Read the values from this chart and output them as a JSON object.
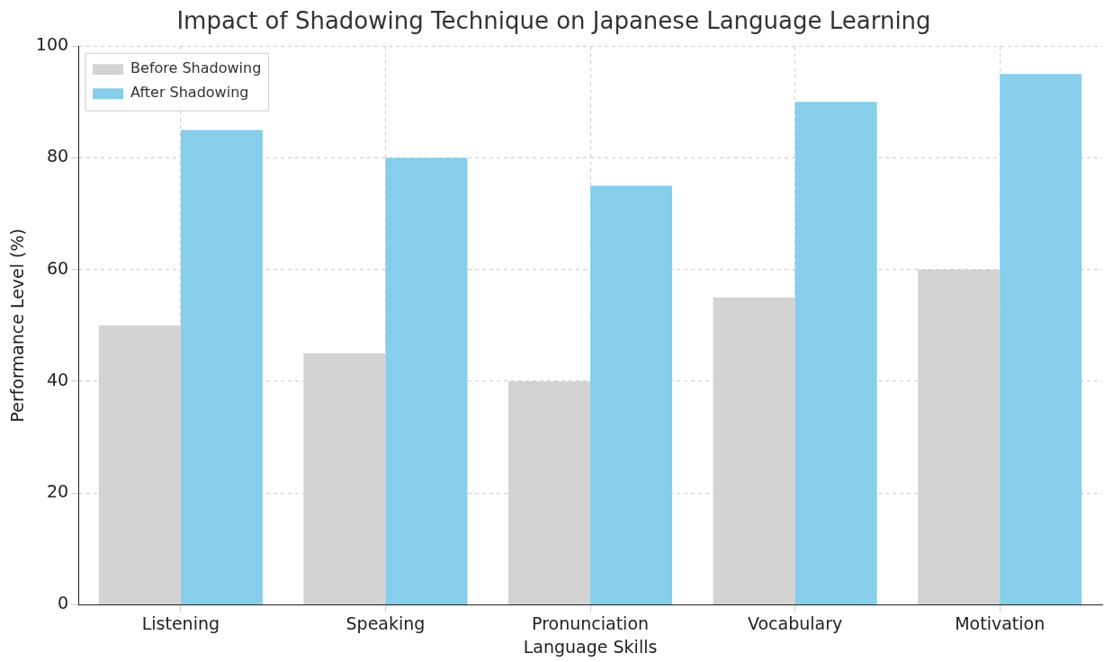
{
  "chart_data": {
    "type": "bar",
    "title": "Impact of Shadowing Technique on Japanese Language Learning",
    "xlabel": "Language Skills",
    "ylabel": "Performance Level (%)",
    "categories": [
      "Listening",
      "Speaking",
      "Pronunciation",
      "Vocabulary",
      "Motivation"
    ],
    "series": [
      {
        "name": "Before Shadowing",
        "color": "#d3d3d3",
        "values": [
          50,
          45,
          40,
          55,
          60
        ]
      },
      {
        "name": "After Shadowing",
        "color": "#87ceeb",
        "values": [
          85,
          80,
          75,
          90,
          95
        ]
      }
    ],
    "ylim": [
      0,
      100
    ],
    "yticks": [
      0,
      20,
      40,
      60,
      80,
      100
    ],
    "grid": true,
    "legend": "top left"
  }
}
